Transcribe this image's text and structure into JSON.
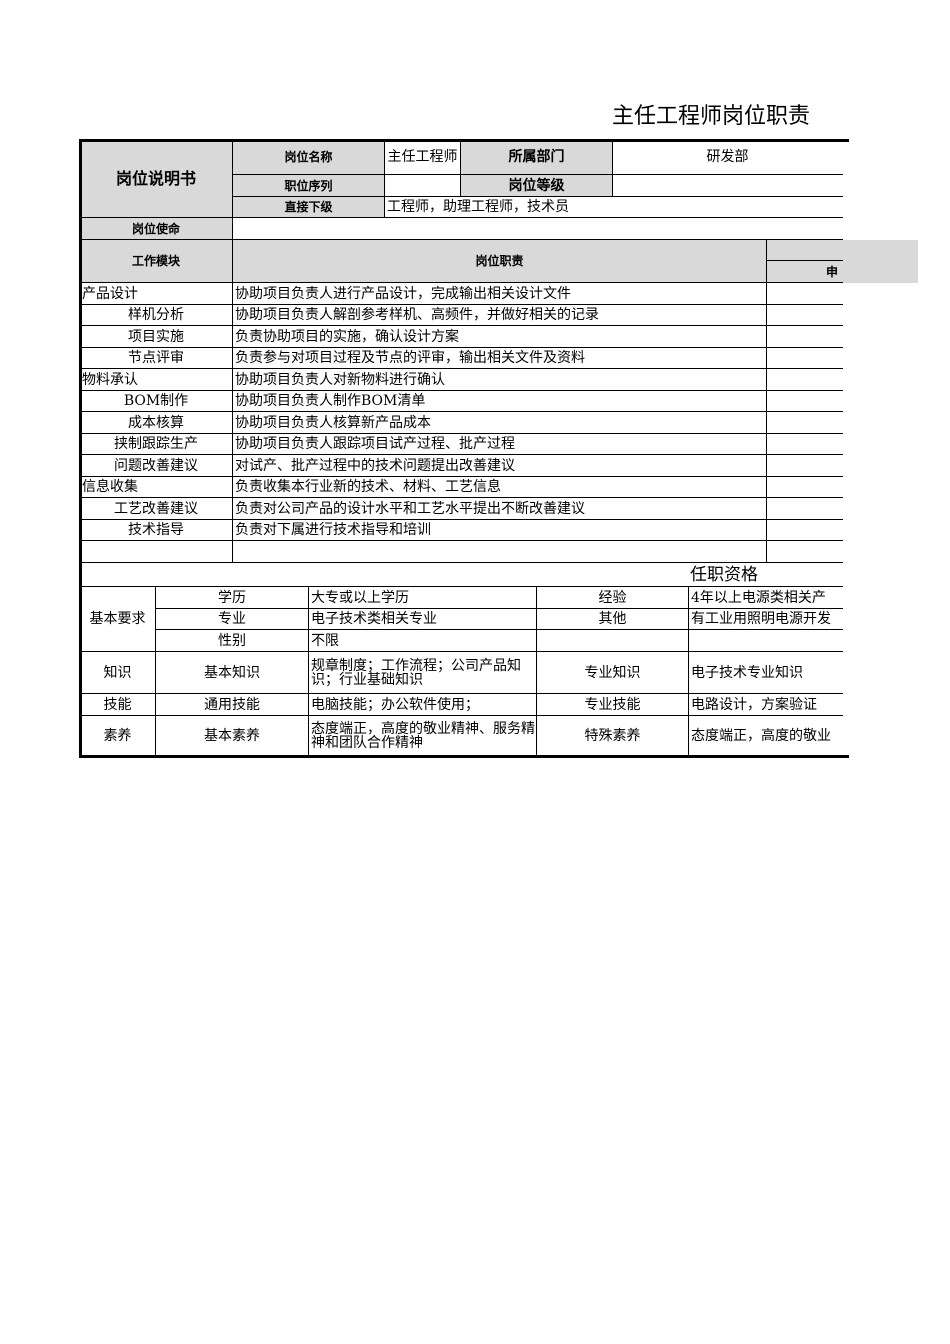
{
  "title": "主任工程师岗位职责",
  "header": {
    "doc_label": "岗位说明书",
    "position_name_label": "岗位名称",
    "position_name": "主任工程师",
    "department_label": "所属部门",
    "department": "研发部",
    "sequence_label": "职位序列",
    "sequence": "",
    "grade_label": "岗位等级",
    "grade": "",
    "subordinates_label": "直接下级",
    "subordinates": "工程师，助理工程师，技术员",
    "mission_label": "岗位使命",
    "mission": ""
  },
  "duties": {
    "module_header": "工作模块",
    "duty_header": "岗位职责",
    "right_sub_header": "申",
    "rows": [
      {
        "module": "产品设计",
        "duty": "协助项目负责人进行产品设计，完成输出相关设计文件",
        "align": "left"
      },
      {
        "module": "样机分析",
        "duty": "协助项目负责人解剖参考样机、高频件，并做好相关的记录",
        "align": "center"
      },
      {
        "module": "项目实施",
        "duty": "负责协助项目的实施，确认设计方案",
        "align": "center"
      },
      {
        "module": "节点评审",
        "duty": "负责参与对项目过程及节点的评审，输出相关文件及资料",
        "align": "center"
      },
      {
        "module": "物料承认",
        "duty": "协助项目负责人对新物料进行确认",
        "align": "left"
      },
      {
        "module": "BOM制作",
        "duty": "协助项目负责人制作BOM清单",
        "align": "center"
      },
      {
        "module": "成本核算",
        "duty": "协助项目负责人核算新产品成本",
        "align": "center"
      },
      {
        "module": "挟制跟踪生产",
        "duty": "协助项目负责人跟踪项目试产过程、批产过程",
        "align": "center"
      },
      {
        "module": "问题改善建议",
        "duty": "对试产、批产过程中的技术问题提出改善建议",
        "align": "center"
      },
      {
        "module": "信息收集",
        "duty": "负责收集本行业新的技术、材料、工艺信息",
        "align": "left"
      },
      {
        "module": "工艺改善建议",
        "duty": "负责对公司产品的设计水平和工艺水平提出不断改善建议",
        "align": "center"
      },
      {
        "module": "技术指导",
        "duty": "负责对下属进行技术指导和培训",
        "align": "center"
      },
      {
        "module": "",
        "duty": "",
        "align": "center"
      }
    ]
  },
  "qualifications": {
    "title": "任职资格",
    "basic_label": "基本要求",
    "education_label": "学历",
    "education": "大专或以上学历",
    "experience_label": "经验",
    "experience": "4年以上电源类相关产",
    "major_label": "专业",
    "major": "电子技术类相关专业",
    "other_label": "其他",
    "other": "有工业用照明电源开发",
    "gender_label": "性别",
    "gender": "不限",
    "knowledge_label": "知识",
    "basic_knowledge_label": "基本知识",
    "basic_knowledge": "规章制度；工作流程；公司产品知识；行业基础知识",
    "pro_knowledge_label": "专业知识",
    "pro_knowledge": "电子技术专业知识",
    "skill_label": "技能",
    "general_skill_label": "通用技能",
    "general_skill": "电脑技能；办公软件使用；",
    "pro_skill_label": "专业技能",
    "pro_skill": "电路设计，方案验证",
    "quality_label": "素养",
    "basic_quality_label": "基本素养",
    "basic_quality": "态度端正，高度的敬业精神、服务精神和团队合作精神",
    "special_quality_label": "特殊素养",
    "special_quality": "态度端正，高度的敬业"
  }
}
